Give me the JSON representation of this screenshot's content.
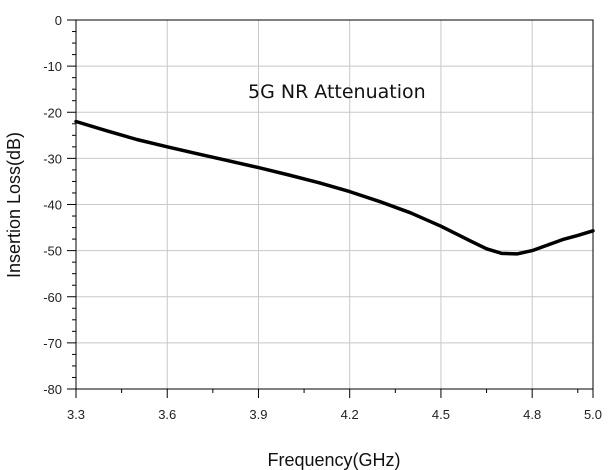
{
  "chart_data": {
    "type": "line",
    "title": "",
    "annotation": "5G NR Attenuation",
    "xlabel": "Frequency(GHz)",
    "ylabel": "Insertion Loss(dB)",
    "xlim": [
      3.3,
      5.0
    ],
    "ylim": [
      -80,
      0
    ],
    "xticks": [
      3.3,
      3.6,
      3.9,
      4.2,
      4.5,
      4.8,
      5.0
    ],
    "xtick_labels": [
      "3.3",
      "3.6",
      "3.9",
      "4.2",
      "4.5",
      "4.8",
      "5.0"
    ],
    "yticks": [
      0,
      -10,
      -20,
      -30,
      -40,
      -50,
      -60,
      -70,
      -80
    ],
    "ytick_labels": [
      "0",
      "-10",
      "-20",
      "-30",
      "-40",
      "-50",
      "-60",
      "-70",
      "-80"
    ],
    "grid": true,
    "legend": "none",
    "series": [
      {
        "color": "#000000",
        "x": [
          3.3,
          3.4,
          3.5,
          3.6,
          3.7,
          3.8,
          3.9,
          4.0,
          4.1,
          4.2,
          4.3,
          4.4,
          4.5,
          4.6,
          4.65,
          4.7,
          4.75,
          4.8,
          4.85,
          4.9,
          4.95,
          5.0
        ],
        "y": [
          -22.0,
          -24.0,
          -25.9,
          -27.5,
          -29.0,
          -30.5,
          -32.0,
          -33.6,
          -35.3,
          -37.2,
          -39.4,
          -41.8,
          -44.7,
          -48.0,
          -49.6,
          -50.6,
          -50.7,
          -50.0,
          -48.8,
          -47.6,
          -46.7,
          -45.7
        ]
      }
    ]
  }
}
